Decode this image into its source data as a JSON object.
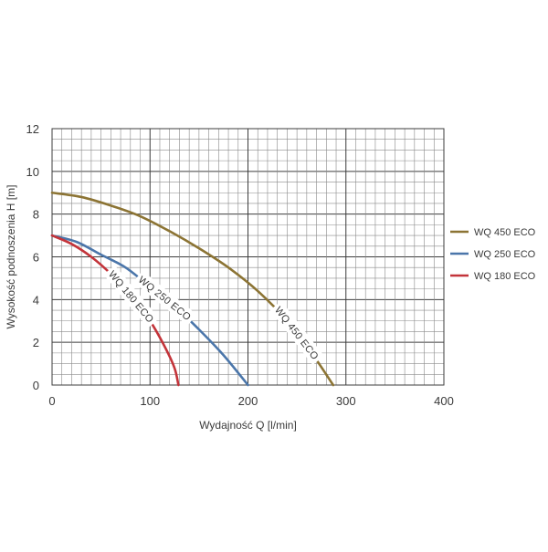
{
  "chart_data": {
    "type": "line",
    "xlabel": "Wydajność Q [l/min]",
    "ylabel": "Wysokość podnoszenia H [m]",
    "xlim": [
      0,
      400
    ],
    "ylim": [
      0,
      12
    ],
    "x_ticks": [
      0,
      100,
      200,
      300,
      400
    ],
    "y_ticks": [
      0,
      2,
      4,
      6,
      8,
      10,
      12
    ],
    "grid": true,
    "legend_position": "right",
    "series": [
      {
        "name": "WQ 450 ECO",
        "color": "#8c7434",
        "points": [
          [
            0,
            9.0
          ],
          [
            30,
            8.8
          ],
          [
            60,
            8.4
          ],
          [
            90,
            7.9
          ],
          [
            120,
            7.2
          ],
          [
            150,
            6.4
          ],
          [
            180,
            5.5
          ],
          [
            210,
            4.4
          ],
          [
            240,
            3.0
          ],
          [
            265,
            1.5
          ],
          [
            287,
            0.0
          ]
        ]
      },
      {
        "name": "WQ 250 ECO",
        "color": "#4b76aa",
        "points": [
          [
            0,
            7.0
          ],
          [
            25,
            6.7
          ],
          [
            50,
            6.1
          ],
          [
            75,
            5.5
          ],
          [
            100,
            4.6
          ],
          [
            125,
            3.7
          ],
          [
            150,
            2.6
          ],
          [
            175,
            1.4
          ],
          [
            200,
            0.0
          ]
        ]
      },
      {
        "name": "WQ 180 ECO",
        "color": "#c3343a",
        "points": [
          [
            0,
            7.0
          ],
          [
            20,
            6.6
          ],
          [
            40,
            6.0
          ],
          [
            60,
            5.2
          ],
          [
            80,
            4.2
          ],
          [
            100,
            3.0
          ],
          [
            115,
            1.8
          ],
          [
            125,
            0.8
          ],
          [
            129,
            0.0
          ]
        ]
      }
    ]
  }
}
